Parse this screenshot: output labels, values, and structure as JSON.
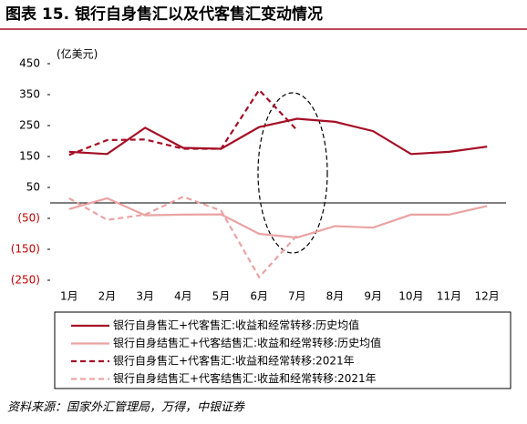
{
  "chart_data": {
    "type": "line",
    "title": "图表 15. 银行自身售汇以及代客售汇变动情况",
    "y_unit": "(亿美元)",
    "source": "资料来源：国家外汇管理局，万得，中银证券",
    "categories": [
      "1月",
      "2月",
      "3月",
      "4月",
      "5月",
      "6月",
      "7月",
      "8月",
      "9月",
      "10月",
      "11月",
      "12月"
    ],
    "ylim": [
      -250,
      450
    ],
    "yticks": [
      450,
      350,
      250,
      150,
      50,
      {
        "value": -50,
        "label": "(50)"
      },
      {
        "value": -150,
        "label": "(150)"
      },
      {
        "value": -250,
        "label": "(250)"
      }
    ],
    "series": [
      {
        "name": "银行自身售汇+代客售汇:收益和经常转移:历史均值",
        "color": "#a50f26",
        "dash": false,
        "values": [
          165,
          158,
          243,
          178,
          175,
          245,
          272,
          262,
          232,
          158,
          165,
          182
        ]
      },
      {
        "name": "银行自身结售汇+代客结售汇:收益和经常转移:历史均值",
        "color": "#eaa3a3",
        "dash": false,
        "values": [
          -20,
          15,
          -40,
          -38,
          -37,
          -100,
          -112,
          -75,
          -80,
          -38,
          -38,
          -10
        ]
      },
      {
        "name": "银行自身售汇+代客售汇:收益和经常转移:2021年",
        "color": "#a50f26",
        "dash": true,
        "values": [
          155,
          203,
          205,
          175,
          175,
          365,
          235,
          null,
          null,
          null,
          null,
          null
        ]
      },
      {
        "name": "银行自身结售汇+代客结售汇:收益和经常转移:2021年",
        "color": "#eaa3a3",
        "dash": true,
        "values": [
          15,
          -55,
          -38,
          20,
          -25,
          -240,
          -105,
          null,
          null,
          null,
          null,
          null
        ]
      }
    ]
  }
}
